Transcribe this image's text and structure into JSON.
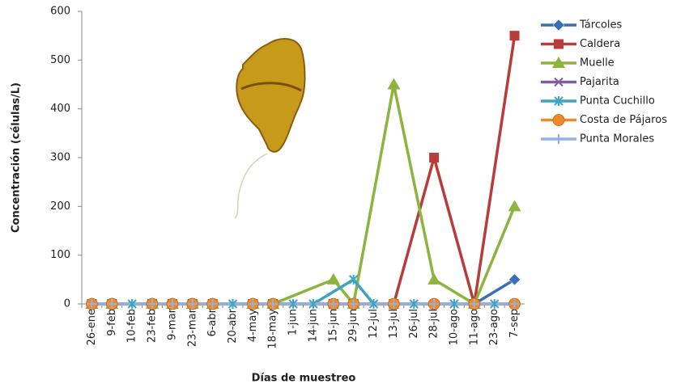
{
  "chart_data": {
    "type": "line",
    "x_label": "Días de muestreo",
    "y_label": "Concentración (células/L)",
    "categories": [
      "26-ene",
      "9-feb",
      "10-feb",
      "23-feb",
      "9-mar",
      "23-mar",
      "6-abr",
      "20-abr",
      "4-may",
      "18-may",
      "1-jun",
      "14-jun",
      "15-jun",
      "29-jun",
      "12-jul",
      "13-jul",
      "26-jul",
      "28-jul",
      "10-ago",
      "11-ago",
      "23-ago",
      "7-sep"
    ],
    "ylim": [
      0,
      600
    ],
    "yticks": [
      0,
      100,
      200,
      300,
      400,
      500,
      600
    ],
    "grid": false,
    "connect_gaps": true,
    "legend": "right",
    "series": [
      {
        "name": "Tárcoles",
        "color": "#3a6fb5",
        "marker": "diamond",
        "values": [
          0,
          0,
          null,
          0,
          0,
          0,
          0,
          null,
          0,
          0,
          null,
          null,
          0,
          0,
          null,
          0,
          null,
          0,
          null,
          0,
          null,
          50
        ]
      },
      {
        "name": "Caldera",
        "color": "#b83c3a",
        "marker": "square",
        "values": [
          0,
          0,
          null,
          0,
          0,
          0,
          0,
          null,
          0,
          0,
          null,
          null,
          0,
          0,
          null,
          0,
          null,
          300,
          null,
          0,
          null,
          550
        ]
      },
      {
        "name": "Muelle",
        "color": "#8db43f",
        "marker": "triangle",
        "values": [
          0,
          0,
          null,
          0,
          0,
          0,
          0,
          null,
          0,
          0,
          null,
          null,
          50,
          0,
          null,
          450,
          null,
          50,
          null,
          0,
          null,
          200
        ]
      },
      {
        "name": "Pajarita",
        "color": "#7e5ea3",
        "marker": "x",
        "values": [
          0,
          0,
          null,
          0,
          0,
          0,
          0,
          null,
          0,
          0,
          null,
          null,
          0,
          0,
          null,
          0,
          null,
          0,
          null,
          0,
          null,
          0
        ]
      },
      {
        "name": "Punta Cuchillo",
        "color": "#3fa3c2",
        "marker": "star",
        "values": [
          0,
          null,
          0,
          null,
          null,
          null,
          null,
          0,
          null,
          null,
          0,
          0,
          null,
          50,
          0,
          null,
          0,
          null,
          0,
          null,
          0,
          0
        ]
      },
      {
        "name": "Costa de Pájaros",
        "color": "#f0892a",
        "marker": "circle",
        "values": [
          0,
          0,
          null,
          0,
          0,
          0,
          0,
          null,
          0,
          0,
          null,
          null,
          0,
          0,
          null,
          0,
          null,
          0,
          null,
          0,
          null,
          0
        ]
      },
      {
        "name": "Punta Morales",
        "color": "#94b2e0",
        "marker": "plus",
        "values": [
          0,
          0,
          null,
          0,
          0,
          0,
          0,
          null,
          0,
          0,
          null,
          null,
          0,
          0,
          null,
          0,
          null,
          0,
          null,
          0,
          null,
          0
        ]
      }
    ]
  }
}
